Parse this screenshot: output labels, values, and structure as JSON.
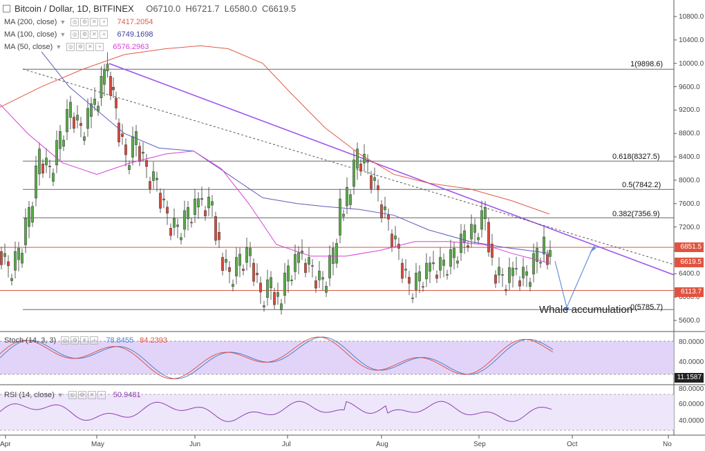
{
  "header": {
    "title": "Bitcoin / Dollar, 1D, BITFINEX",
    "open": "O6710.0",
    "high": "H6721.7",
    "low": "L6580.0",
    "close": "C6619.5"
  },
  "indicators": [
    {
      "label": "MA (200, close)",
      "value": "7417.2054",
      "color": "#e05a47"
    },
    {
      "label": "MA (100, close)",
      "value": "6749.1698",
      "color": "#3d3d9e"
    },
    {
      "label": "MA (50, close)",
      "value": "6576.2963",
      "color": "#d63fd6"
    }
  ],
  "price_axis": [
    "10800.0",
    "10400.0",
    "10000.0",
    "9600.0",
    "9200.0",
    "8800.0",
    "8400.0",
    "8000.0",
    "7600.0",
    "7200.0",
    "6800.0",
    "6400.0",
    "6000.0",
    "5600.0"
  ],
  "badges": [
    {
      "text": "6851.5",
      "color": "#e0533f"
    },
    {
      "text": "6619.5",
      "color": "#e0533f"
    },
    {
      "text": "6113.7",
      "color": "#e0533f"
    }
  ],
  "fib_levels": [
    {
      "label": "1(9898.6)",
      "price": 9898.6
    },
    {
      "label": "0.618(8327.5)",
      "price": 8327.5
    },
    {
      "label": "0.5(7842.2)",
      "price": 7842.2
    },
    {
      "label": "0.382(7356.9)",
      "price": 7356.9
    },
    {
      "label": "0(5785.7)",
      "price": 5785.7
    }
  ],
  "annotation": "Whale accumulation",
  "stoch": {
    "label": "Stoch (14, 3, 3)",
    "k": "78.8455",
    "d": "84.2393",
    "axis": [
      "80.0000",
      "40.0000"
    ],
    "badge": "11.1587"
  },
  "rsi": {
    "label": "RSI (14, close)",
    "value": "50.9481",
    "axis": [
      "80.0000",
      "60.0000",
      "40.0000"
    ]
  },
  "time_axis": [
    "Apr",
    "May",
    "Jun",
    "Jul",
    "Aug",
    "Sep",
    "Oct",
    "No"
  ],
  "chart_data": {
    "type": "candlestick",
    "symbol": "Bitcoin / Dollar",
    "interval": "1D",
    "exchange": "BITFINEX",
    "ylim": [
      5400,
      11000
    ],
    "horizontal_levels": [
      6851.5,
      6113.7
    ],
    "monthly_path": [
      {
        "x": "Apr",
        "y": 6900
      },
      {
        "x": "Apr",
        "y": 8400
      },
      {
        "x": "May",
        "y": 9898.6
      },
      {
        "x": "May",
        "y": 8300
      },
      {
        "x": "Jun",
        "y": 7600
      },
      {
        "x": "Jun",
        "y": 6200
      },
      {
        "x": "Jul",
        "y": 6300
      },
      {
        "x": "Jul",
        "y": 8400
      },
      {
        "x": "Aug",
        "y": 7000
      },
      {
        "x": "Aug",
        "y": 6100
      },
      {
        "x": "Sep",
        "y": 7400
      },
      {
        "x": "Sep",
        "y": 6300
      },
      {
        "x": "Sep",
        "y": 6619.5
      }
    ]
  }
}
